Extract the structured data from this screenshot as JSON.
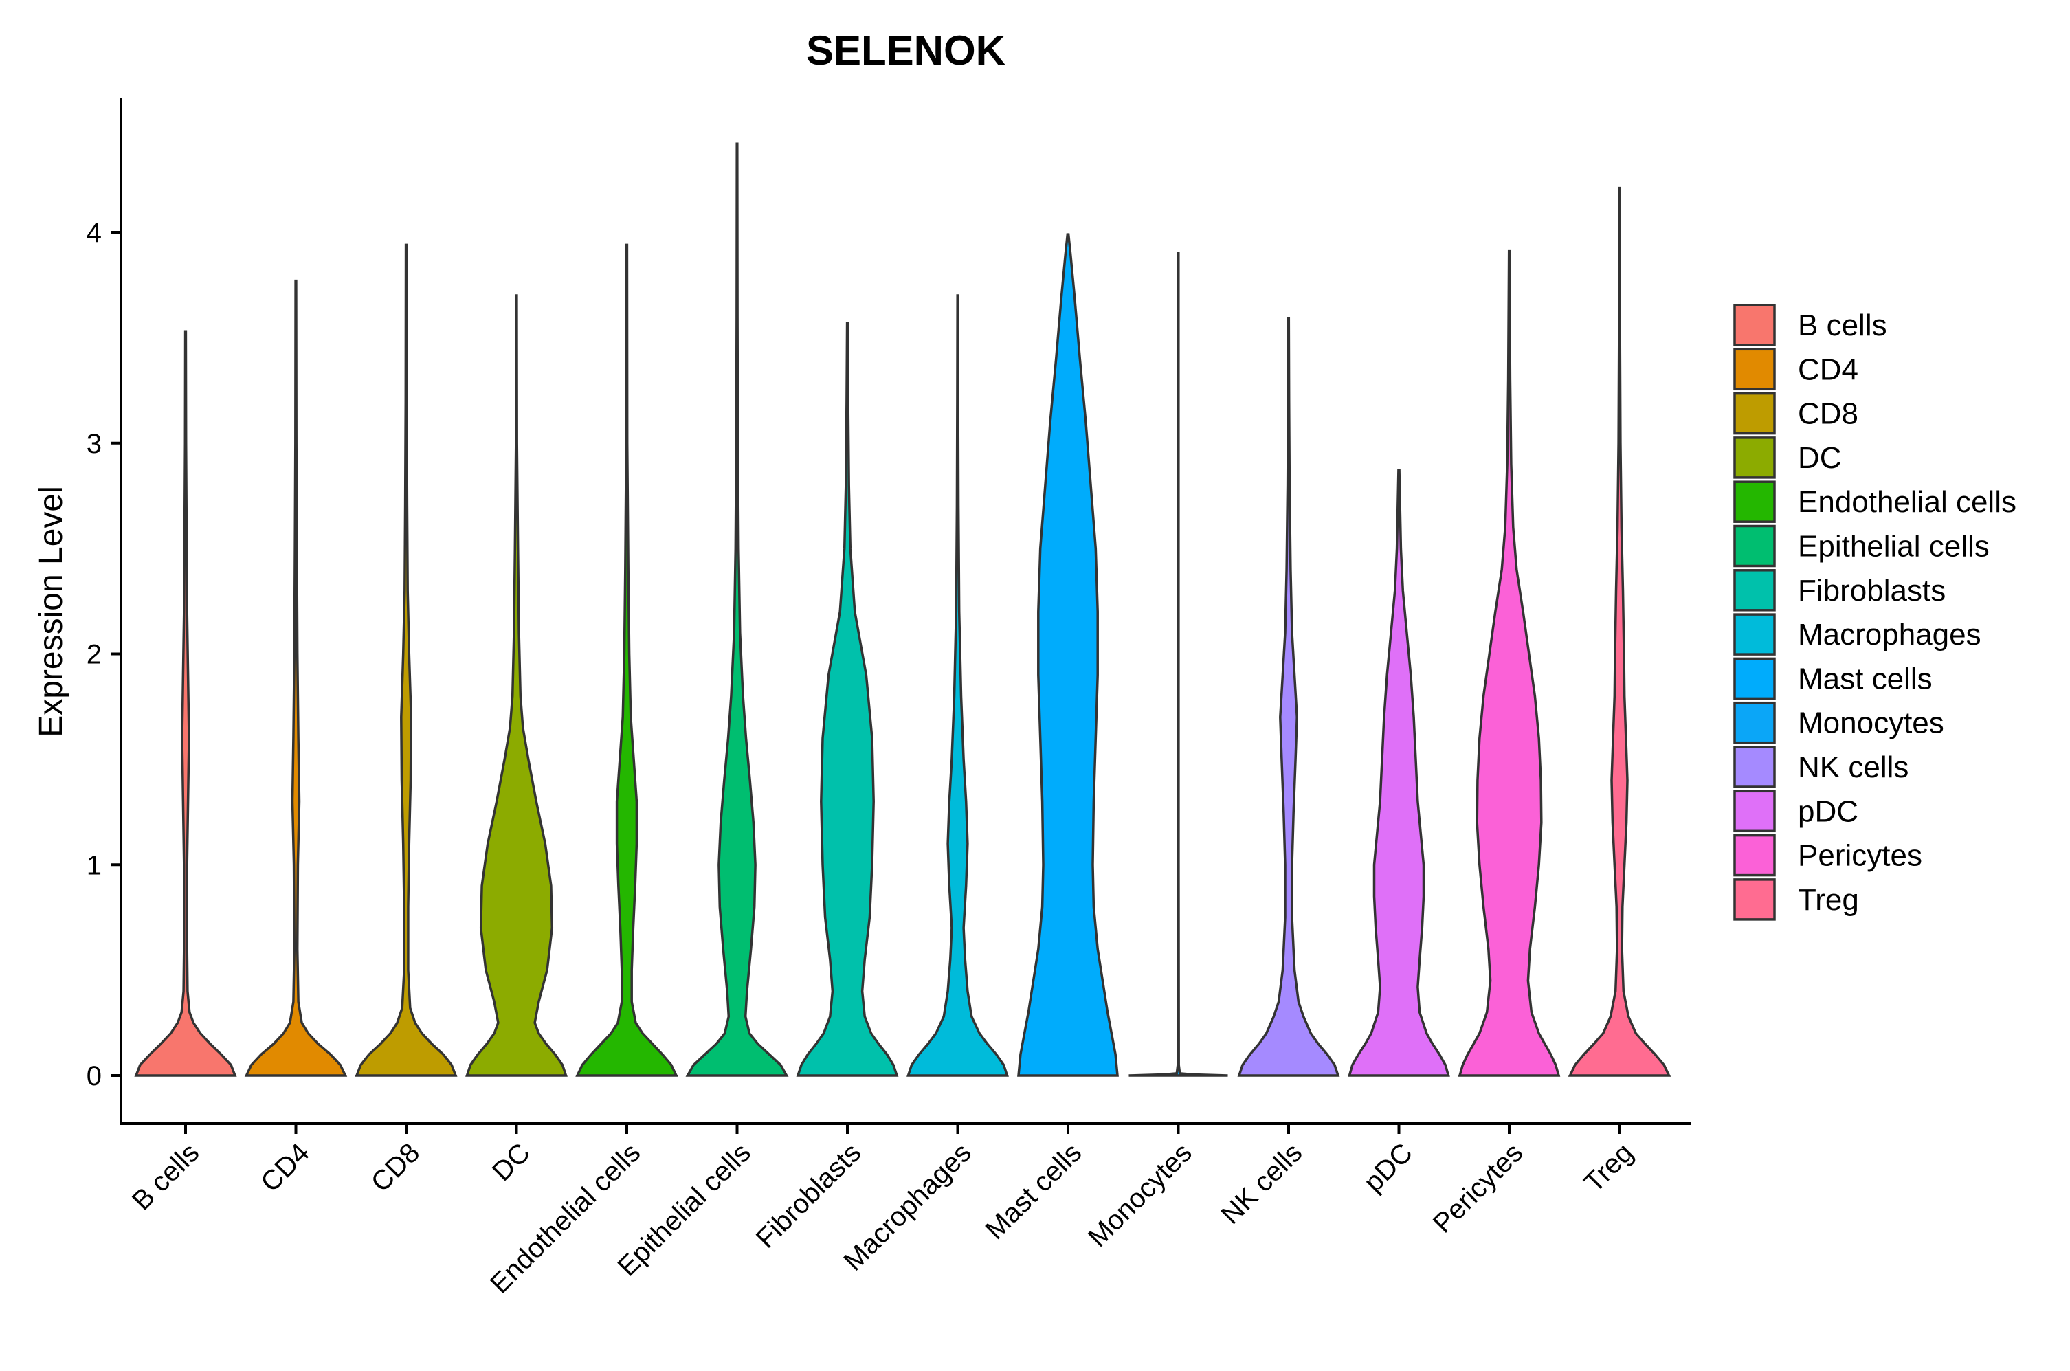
{
  "chart_data": {
    "type": "violin",
    "title": "SELENOK",
    "xlabel": "",
    "ylabel": "Expression Level",
    "ylim": [
      -0.22,
      4.62
    ],
    "yticks": [
      0,
      1,
      2,
      3,
      4
    ],
    "ytick_labels": [
      "0",
      "1",
      "2",
      "3",
      "4"
    ],
    "grid": false,
    "legend_position": "right",
    "categories": [
      "B cells",
      "CD4",
      "CD8",
      "DC",
      "Endothelial cells",
      "Epithelial cells",
      "Fibroblasts",
      "Macrophages",
      "Mast cells",
      "Monocytes",
      "NK cells",
      "pDC",
      "Pericytes",
      "Treg"
    ],
    "series": [
      {
        "name": "B cells",
        "color": "#F8766D",
        "max": 3.53,
        "density": [
          [
            0,
            1.0
          ],
          [
            0.05,
            0.92
          ],
          [
            0.1,
            0.72
          ],
          [
            0.15,
            0.5
          ],
          [
            0.2,
            0.3
          ],
          [
            0.25,
            0.16
          ],
          [
            0.3,
            0.08
          ],
          [
            0.4,
            0.04
          ],
          [
            0.6,
            0.03
          ],
          [
            1.0,
            0.03
          ],
          [
            1.3,
            0.05
          ],
          [
            1.6,
            0.07
          ],
          [
            1.9,
            0.05
          ],
          [
            2.2,
            0.03
          ],
          [
            2.6,
            0.02
          ],
          [
            3.0,
            0.01
          ],
          [
            3.53,
            0.005
          ]
        ]
      },
      {
        "name": "CD4",
        "color": "#E18A00",
        "max": 3.77,
        "density": [
          [
            0,
            1.0
          ],
          [
            0.05,
            0.9
          ],
          [
            0.1,
            0.7
          ],
          [
            0.15,
            0.45
          ],
          [
            0.2,
            0.25
          ],
          [
            0.25,
            0.12
          ],
          [
            0.35,
            0.05
          ],
          [
            0.6,
            0.03
          ],
          [
            1.0,
            0.04
          ],
          [
            1.3,
            0.07
          ],
          [
            1.6,
            0.05
          ],
          [
            2.0,
            0.03
          ],
          [
            2.5,
            0.02
          ],
          [
            3.0,
            0.01
          ],
          [
            3.77,
            0.005
          ]
        ]
      },
      {
        "name": "CD8",
        "color": "#BE9C00",
        "max": 3.94,
        "density": [
          [
            0,
            1.0
          ],
          [
            0.05,
            0.92
          ],
          [
            0.1,
            0.75
          ],
          [
            0.15,
            0.52
          ],
          [
            0.2,
            0.32
          ],
          [
            0.25,
            0.18
          ],
          [
            0.32,
            0.08
          ],
          [
            0.5,
            0.04
          ],
          [
            0.8,
            0.04
          ],
          [
            1.1,
            0.06
          ],
          [
            1.4,
            0.09
          ],
          [
            1.7,
            0.1
          ],
          [
            2.0,
            0.06
          ],
          [
            2.3,
            0.03
          ],
          [
            2.7,
            0.02
          ],
          [
            3.2,
            0.01
          ],
          [
            3.94,
            0.005
          ]
        ]
      },
      {
        "name": "DC",
        "color": "#8CAB00",
        "max": 3.7,
        "density": [
          [
            0,
            1.0
          ],
          [
            0.05,
            0.93
          ],
          [
            0.1,
            0.78
          ],
          [
            0.15,
            0.6
          ],
          [
            0.2,
            0.45
          ],
          [
            0.25,
            0.37
          ],
          [
            0.35,
            0.45
          ],
          [
            0.5,
            0.62
          ],
          [
            0.7,
            0.72
          ],
          [
            0.9,
            0.7
          ],
          [
            1.1,
            0.58
          ],
          [
            1.3,
            0.4
          ],
          [
            1.5,
            0.24
          ],
          [
            1.65,
            0.13
          ],
          [
            1.8,
            0.08
          ],
          [
            2.1,
            0.05
          ],
          [
            2.5,
            0.03
          ],
          [
            3.0,
            0.01
          ],
          [
            3.7,
            0.005
          ]
        ]
      },
      {
        "name": "Endothelial cells",
        "color": "#24B700",
        "max": 3.94,
        "density": [
          [
            0,
            1.0
          ],
          [
            0.05,
            0.9
          ],
          [
            0.1,
            0.72
          ],
          [
            0.15,
            0.52
          ],
          [
            0.2,
            0.32
          ],
          [
            0.25,
            0.18
          ],
          [
            0.35,
            0.1
          ],
          [
            0.5,
            0.1
          ],
          [
            0.7,
            0.13
          ],
          [
            0.9,
            0.17
          ],
          [
            1.1,
            0.2
          ],
          [
            1.3,
            0.2
          ],
          [
            1.5,
            0.14
          ],
          [
            1.7,
            0.08
          ],
          [
            2.0,
            0.05
          ],
          [
            2.4,
            0.03
          ],
          [
            3.0,
            0.01
          ],
          [
            3.94,
            0.005
          ]
        ]
      },
      {
        "name": "Epithelial cells",
        "color": "#00BE70",
        "max": 4.42,
        "density": [
          [
            0,
            1.0
          ],
          [
            0.05,
            0.88
          ],
          [
            0.1,
            0.65
          ],
          [
            0.15,
            0.42
          ],
          [
            0.2,
            0.25
          ],
          [
            0.28,
            0.17
          ],
          [
            0.4,
            0.2
          ],
          [
            0.6,
            0.28
          ],
          [
            0.8,
            0.35
          ],
          [
            1.0,
            0.37
          ],
          [
            1.2,
            0.33
          ],
          [
            1.4,
            0.26
          ],
          [
            1.6,
            0.18
          ],
          [
            1.8,
            0.12
          ],
          [
            2.1,
            0.06
          ],
          [
            2.5,
            0.03
          ],
          [
            3.0,
            0.015
          ],
          [
            3.6,
            0.008
          ],
          [
            4.42,
            0.004
          ]
        ]
      },
      {
        "name": "Fibroblasts",
        "color": "#00C1AB",
        "max": 3.57,
        "density": [
          [
            0,
            1.0
          ],
          [
            0.05,
            0.93
          ],
          [
            0.1,
            0.8
          ],
          [
            0.15,
            0.63
          ],
          [
            0.2,
            0.48
          ],
          [
            0.28,
            0.35
          ],
          [
            0.4,
            0.3
          ],
          [
            0.55,
            0.35
          ],
          [
            0.75,
            0.45
          ],
          [
            1.0,
            0.5
          ],
          [
            1.3,
            0.53
          ],
          [
            1.6,
            0.5
          ],
          [
            1.9,
            0.38
          ],
          [
            2.2,
            0.15
          ],
          [
            2.5,
            0.06
          ],
          [
            2.8,
            0.03
          ],
          [
            3.2,
            0.015
          ],
          [
            3.57,
            0.005
          ]
        ]
      },
      {
        "name": "Macrophages",
        "color": "#00BBDA",
        "max": 3.7,
        "density": [
          [
            0,
            1.0
          ],
          [
            0.05,
            0.93
          ],
          [
            0.1,
            0.78
          ],
          [
            0.15,
            0.6
          ],
          [
            0.2,
            0.44
          ],
          [
            0.28,
            0.28
          ],
          [
            0.4,
            0.2
          ],
          [
            0.55,
            0.15
          ],
          [
            0.7,
            0.12
          ],
          [
            0.9,
            0.17
          ],
          [
            1.1,
            0.2
          ],
          [
            1.3,
            0.17
          ],
          [
            1.5,
            0.12
          ],
          [
            1.8,
            0.07
          ],
          [
            2.2,
            0.03
          ],
          [
            2.7,
            0.015
          ],
          [
            3.2,
            0.008
          ],
          [
            3.7,
            0.004
          ]
        ]
      },
      {
        "name": "Mast cells",
        "color": "#00ACFC",
        "max": 3.99,
        "density": [
          [
            0,
            1.0
          ],
          [
            0.1,
            0.96
          ],
          [
            0.2,
            0.88
          ],
          [
            0.3,
            0.8
          ],
          [
            0.45,
            0.7
          ],
          [
            0.6,
            0.6
          ],
          [
            0.8,
            0.52
          ],
          [
            1.0,
            0.5
          ],
          [
            1.3,
            0.52
          ],
          [
            1.6,
            0.56
          ],
          [
            1.9,
            0.6
          ],
          [
            2.2,
            0.6
          ],
          [
            2.5,
            0.56
          ],
          [
            2.8,
            0.46
          ],
          [
            3.1,
            0.36
          ],
          [
            3.4,
            0.24
          ],
          [
            3.7,
            0.13
          ],
          [
            3.9,
            0.05
          ],
          [
            3.99,
            0.01
          ]
        ]
      },
      {
        "name": "Monocytes",
        "color": "#0BA6F7",
        "max": 3.9,
        "density": [
          [
            0,
            1.0
          ],
          [
            0.005,
            0.3
          ],
          [
            0.01,
            0.03
          ],
          [
            0.05,
            0.01
          ],
          [
            1.0,
            0.005
          ],
          [
            3.9,
            0.004
          ]
        ]
      },
      {
        "name": "NK cells",
        "color": "#A58AFF",
        "max": 3.59,
        "density": [
          [
            0,
            1.0
          ],
          [
            0.05,
            0.93
          ],
          [
            0.1,
            0.78
          ],
          [
            0.15,
            0.6
          ],
          [
            0.2,
            0.45
          ],
          [
            0.28,
            0.3
          ],
          [
            0.35,
            0.2
          ],
          [
            0.5,
            0.12
          ],
          [
            0.75,
            0.07
          ],
          [
            1.0,
            0.07
          ],
          [
            1.25,
            0.1
          ],
          [
            1.5,
            0.14
          ],
          [
            1.7,
            0.17
          ],
          [
            1.9,
            0.12
          ],
          [
            2.1,
            0.07
          ],
          [
            2.4,
            0.04
          ],
          [
            2.8,
            0.02
          ],
          [
            3.2,
            0.01
          ],
          [
            3.59,
            0.004
          ]
        ]
      },
      {
        "name": "pDC",
        "color": "#DF70F8",
        "max": 2.87,
        "density": [
          [
            0,
            1.0
          ],
          [
            0.05,
            0.94
          ],
          [
            0.1,
            0.82
          ],
          [
            0.15,
            0.68
          ],
          [
            0.2,
            0.56
          ],
          [
            0.3,
            0.42
          ],
          [
            0.42,
            0.38
          ],
          [
            0.55,
            0.42
          ],
          [
            0.7,
            0.47
          ],
          [
            0.85,
            0.5
          ],
          [
            1.0,
            0.5
          ],
          [
            1.15,
            0.44
          ],
          [
            1.3,
            0.38
          ],
          [
            1.5,
            0.34
          ],
          [
            1.7,
            0.3
          ],
          [
            1.9,
            0.24
          ],
          [
            2.1,
            0.16
          ],
          [
            2.3,
            0.08
          ],
          [
            2.5,
            0.04
          ],
          [
            2.87,
            0.008
          ]
        ]
      },
      {
        "name": "Pericytes",
        "color": "#FB61D7",
        "max": 3.91,
        "density": [
          [
            0,
            1.0
          ],
          [
            0.05,
            0.94
          ],
          [
            0.1,
            0.84
          ],
          [
            0.15,
            0.72
          ],
          [
            0.2,
            0.6
          ],
          [
            0.3,
            0.45
          ],
          [
            0.45,
            0.38
          ],
          [
            0.6,
            0.42
          ],
          [
            0.8,
            0.52
          ],
          [
            1.0,
            0.6
          ],
          [
            1.2,
            0.65
          ],
          [
            1.4,
            0.64
          ],
          [
            1.6,
            0.6
          ],
          [
            1.8,
            0.52
          ],
          [
            2.0,
            0.4
          ],
          [
            2.2,
            0.28
          ],
          [
            2.4,
            0.15
          ],
          [
            2.6,
            0.08
          ],
          [
            2.9,
            0.04
          ],
          [
            3.3,
            0.02
          ],
          [
            3.91,
            0.004
          ]
        ]
      },
      {
        "name": "Treg",
        "color": "#FF6C91",
        "max": 4.21,
        "density": [
          [
            0,
            1.0
          ],
          [
            0.05,
            0.9
          ],
          [
            0.1,
            0.72
          ],
          [
            0.15,
            0.52
          ],
          [
            0.2,
            0.33
          ],
          [
            0.28,
            0.18
          ],
          [
            0.4,
            0.08
          ],
          [
            0.6,
            0.05
          ],
          [
            0.8,
            0.06
          ],
          [
            1.0,
            0.1
          ],
          [
            1.2,
            0.14
          ],
          [
            1.4,
            0.16
          ],
          [
            1.6,
            0.13
          ],
          [
            1.8,
            0.1
          ],
          [
            2.0,
            0.09
          ],
          [
            2.3,
            0.07
          ],
          [
            2.6,
            0.04
          ],
          [
            3.0,
            0.02
          ],
          [
            3.5,
            0.01
          ],
          [
            4.21,
            0.004
          ]
        ]
      }
    ]
  }
}
